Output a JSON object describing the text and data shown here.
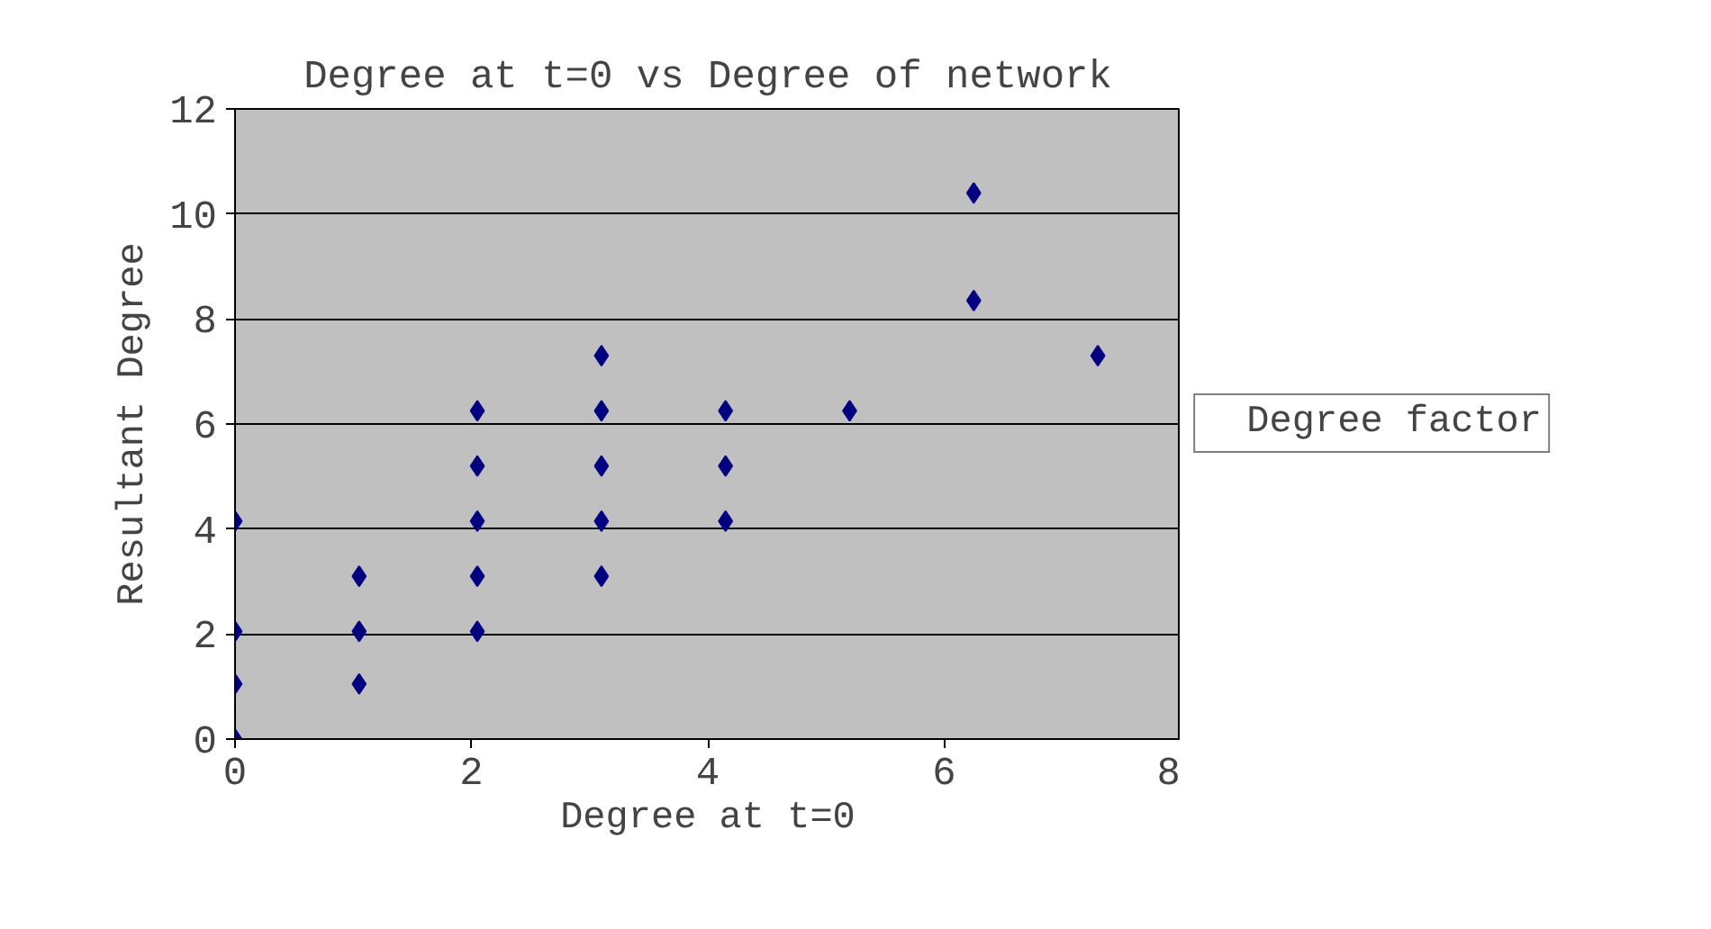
{
  "chart_data": {
    "type": "scatter",
    "title": "Degree at t=0 vs Degree of network",
    "xlabel": "Degree at t=0",
    "ylabel": "Resultant Degree",
    "series": [
      {
        "name": "Degree factor",
        "color": "#000080",
        "x": [
          0,
          0,
          0,
          0,
          1.05,
          1.05,
          1.05,
          2.05,
          2.05,
          2.05,
          2.05,
          2.05,
          3.1,
          3.1,
          3.1,
          3.1,
          3.1,
          4.15,
          4.15,
          4.15,
          5.2,
          6.25,
          6.25,
          7.3
        ],
        "values": [
          0,
          1.05,
          2.05,
          4.15,
          1.05,
          2.05,
          3.1,
          2.05,
          3.1,
          4.15,
          5.2,
          6.25,
          3.1,
          4.15,
          5.2,
          6.25,
          7.3,
          4.15,
          5.2,
          6.25,
          6.25,
          8.35,
          10.4,
          7.3
        ]
      }
    ],
    "xlim": [
      0,
      8
    ],
    "xticks": [
      0,
      2,
      4,
      6,
      8
    ],
    "ylim": [
      0,
      12
    ],
    "yticks": [
      0,
      2,
      4,
      6,
      8,
      10,
      12
    ],
    "grid": "y",
    "legend": "right",
    "marker": "diamond"
  }
}
